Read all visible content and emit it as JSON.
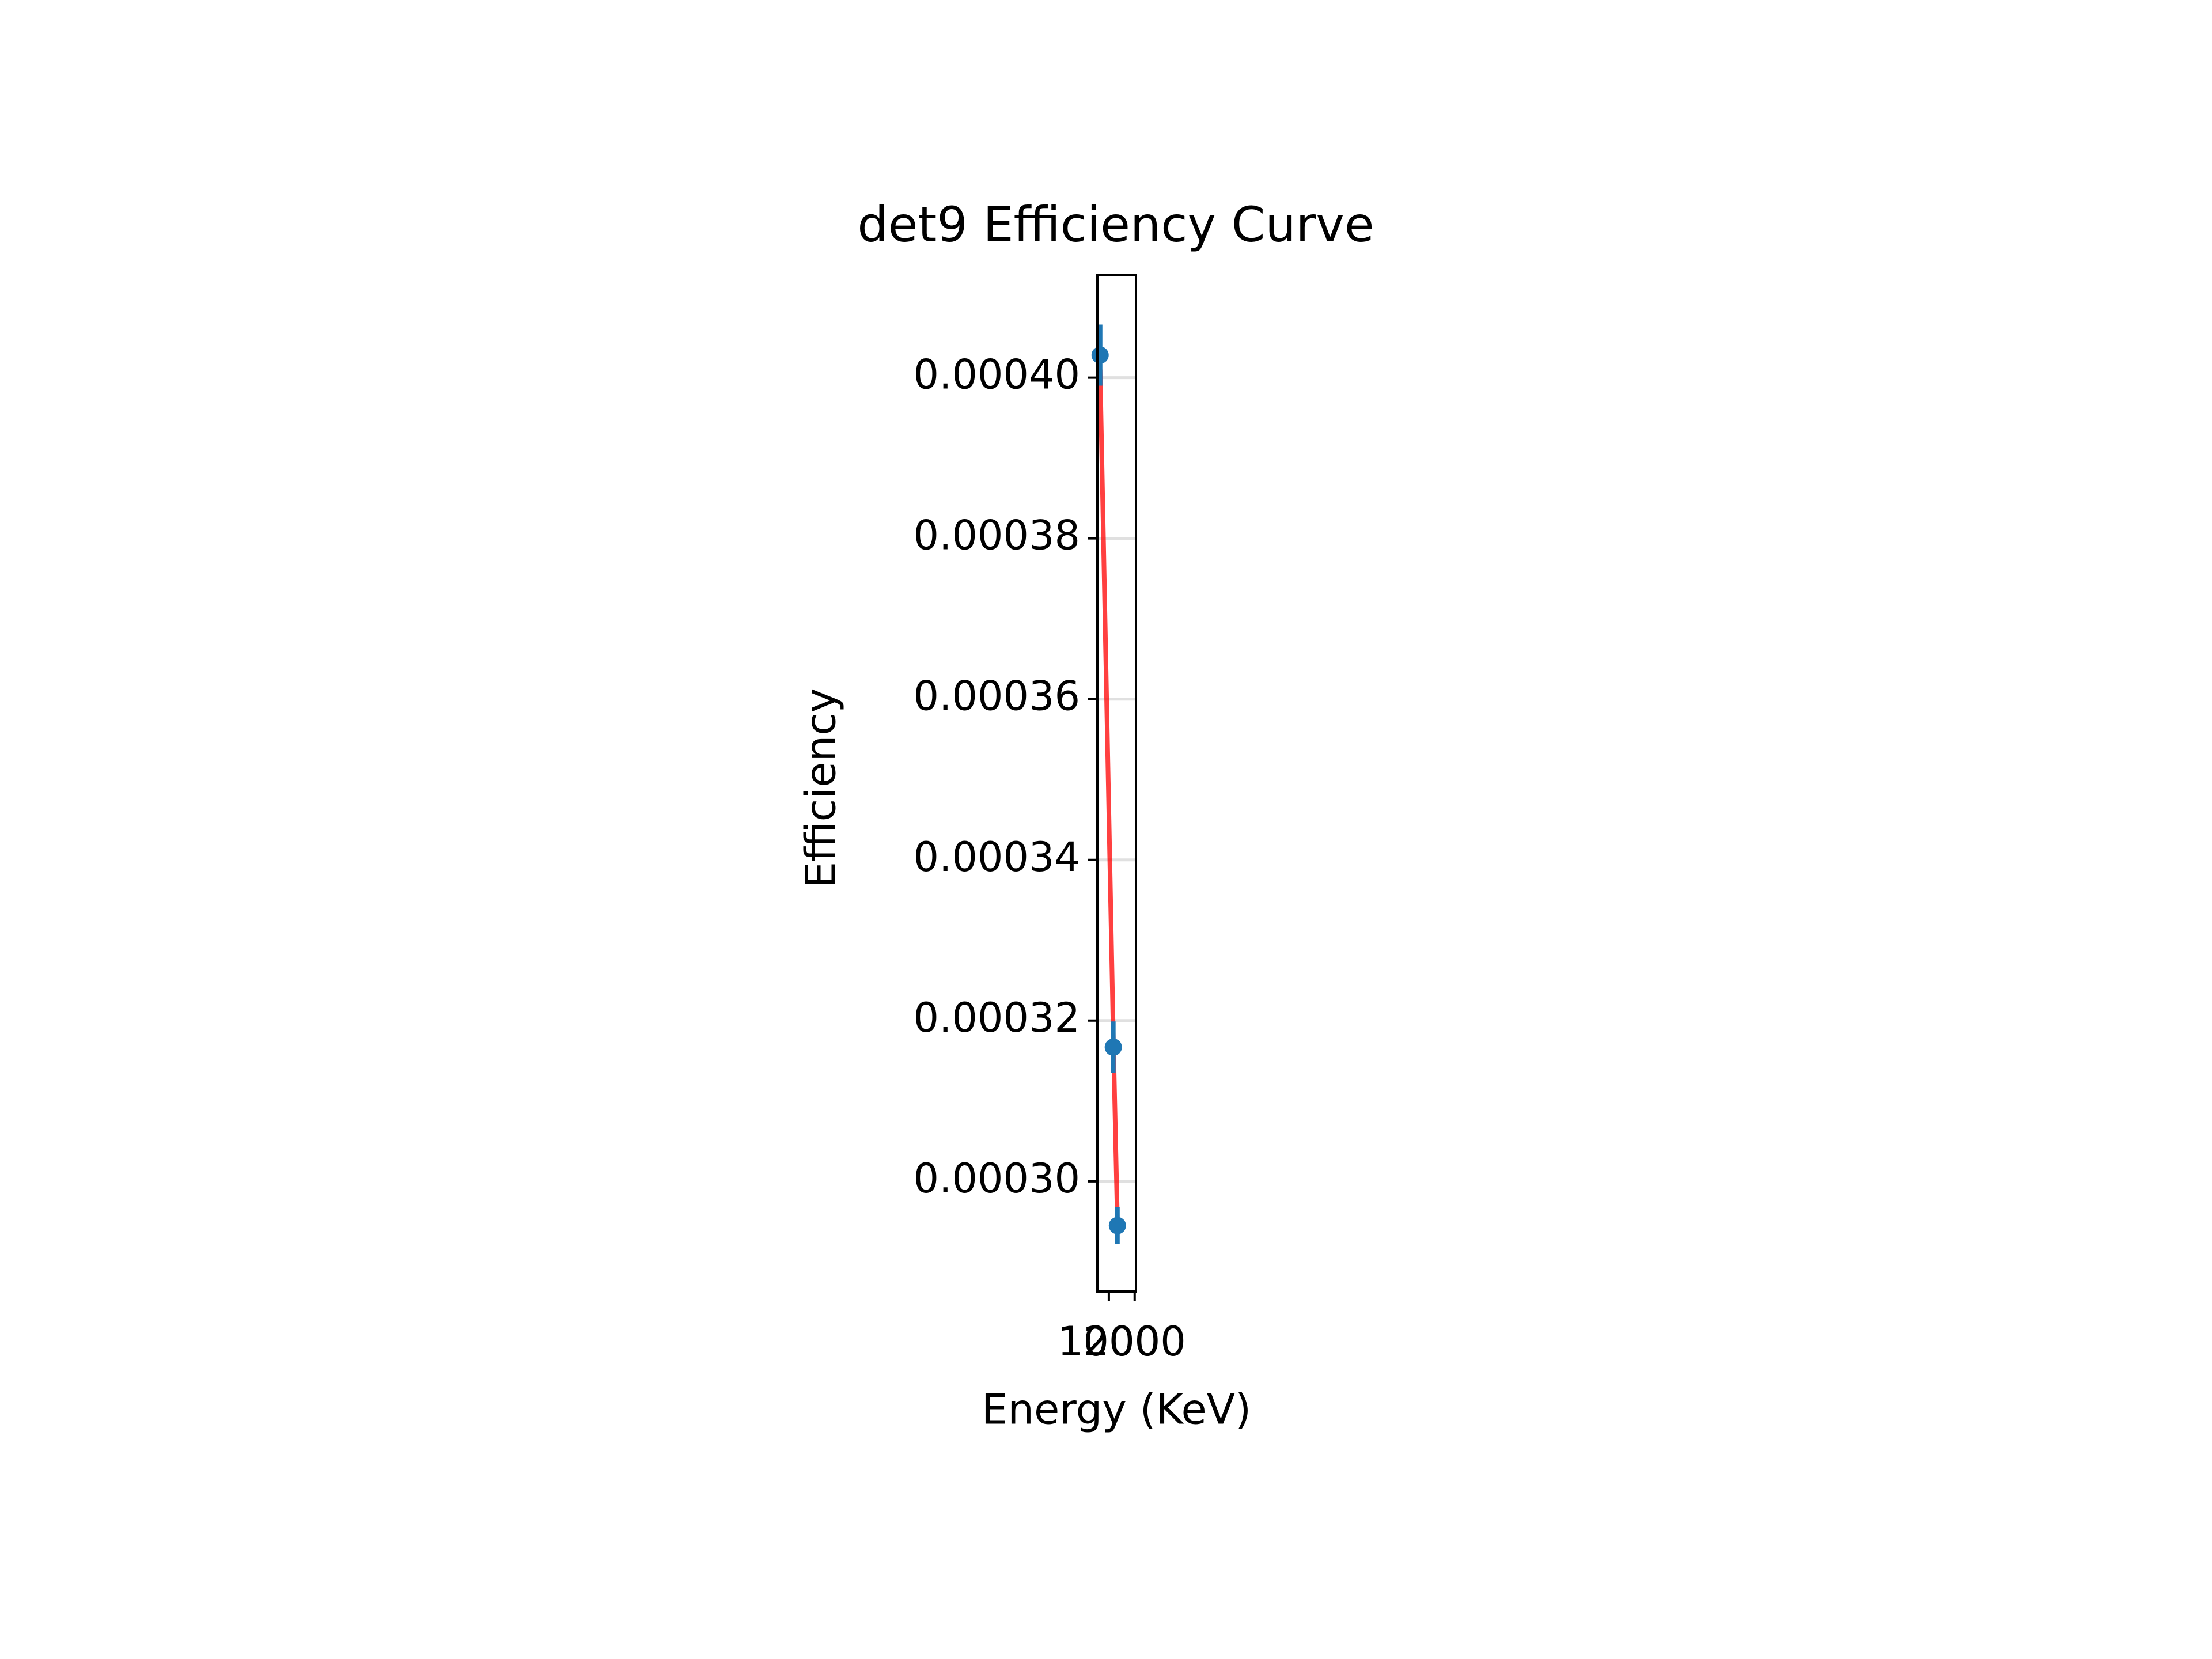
{
  "chart_data": {
    "type": "errorbar",
    "title": "det9 Efficiency Curve",
    "x_label": "Energy (KeV)",
    "y_label": "Efficiency",
    "points": {
      "x": [
        662,
        1173,
        1332
      ],
      "values": [
        0.0004028,
        0.0003167,
        0.0002945
      ],
      "errors": [
        3.8e-06,
        3.2e-06,
        2.3e-06
      ],
      "color": "#1f77b4"
    },
    "fit": {
      "x": [
        662,
        1173,
        1332
      ],
      "values": [
        0.000401,
        0.000318,
        0.000295
      ],
      "color": "#ff0000"
    },
    "xlim": [
      556,
      2050
    ],
    "ylim": [
      0.0002863,
      0.0004128
    ],
    "xticks": [
      1000,
      2000
    ],
    "yticks": [
      {
        "value": 0.0003,
        "label": "0.00030"
      },
      {
        "value": 0.00032,
        "label": "0.00032"
      },
      {
        "value": 0.00034,
        "label": "0.00034"
      },
      {
        "value": 0.00036,
        "label": "0.00036"
      },
      {
        "value": 0.00038,
        "label": "0.00038"
      },
      {
        "value": 0.0004,
        "label": "0.00040"
      }
    ],
    "grid": true
  }
}
